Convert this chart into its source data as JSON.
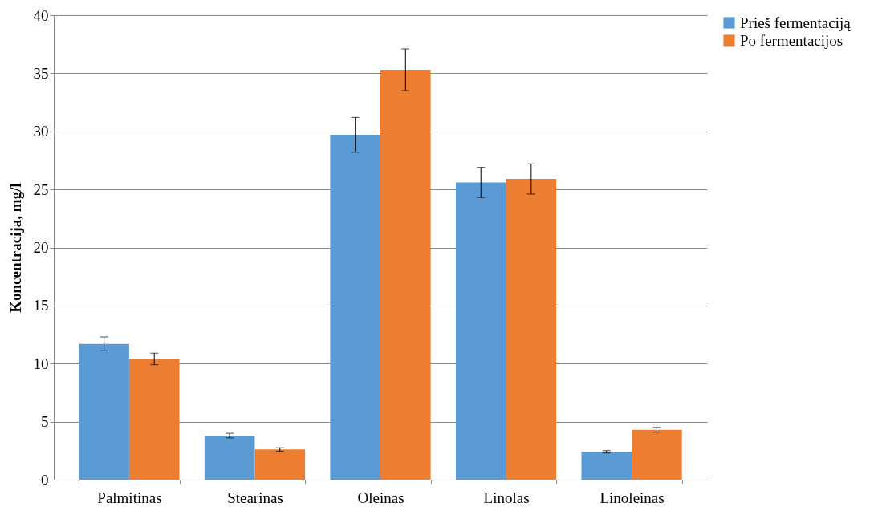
{
  "chart_data": {
    "type": "bar",
    "ylabel": "Koncentracija, mg/l",
    "categories": [
      "Palmitinas",
      "Stearinas",
      "Oleinas",
      "Linolas",
      "Linoleinas"
    ],
    "series": [
      {
        "name": "Prieš fermentaciją",
        "color": "#5b9bd5",
        "values": [
          11.7,
          3.8,
          29.7,
          25.6,
          2.4
        ],
        "errors": [
          0.6,
          0.2,
          1.5,
          1.3,
          0.1
        ]
      },
      {
        "name": "Po fermentacijos",
        "color": "#ed7d31",
        "values": [
          10.4,
          2.6,
          35.3,
          25.9,
          4.3
        ],
        "errors": [
          0.5,
          0.15,
          1.8,
          1.3,
          0.2
        ]
      }
    ],
    "ylim": [
      0,
      40
    ],
    "yticks": [
      0,
      5,
      10,
      15,
      20,
      25,
      30,
      35,
      40
    ],
    "grid": "y",
    "legend": "right"
  }
}
